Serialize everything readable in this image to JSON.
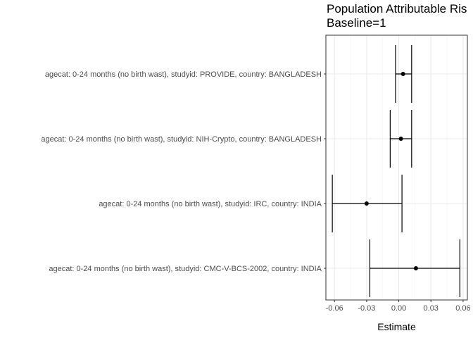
{
  "chart_data": {
    "type": "forest",
    "title": "Population Attributable Ris",
    "subtitle": "Baseline=1",
    "xlabel": "Estimate",
    "ylabel": "",
    "xlim": [
      -0.068,
      0.064
    ],
    "x_ticks": [
      -0.06,
      -0.03,
      0.0,
      0.03,
      0.06
    ],
    "x_tick_labels": [
      "-0.06",
      "-0.03",
      "0.00",
      "0.03",
      "0.06"
    ],
    "grid": true,
    "rows": [
      {
        "label": "agecat: 0-24 months (no birth wast), studyid: PROVIDE, country: BANGLADESH",
        "estimate": 0.004,
        "lower": -0.003,
        "upper": 0.012
      },
      {
        "label": "agecat: 0-24 months (no birth wast), studyid: NIH-Crypto, country: BANGLADESH",
        "estimate": 0.002,
        "lower": -0.008,
        "upper": 0.012
      },
      {
        "label": "agecat: 0-24 months (no birth wast), studyid: IRC, country: INDIA",
        "estimate": -0.03,
        "lower": -0.062,
        "upper": 0.003
      },
      {
        "label": "agecat: 0-24 months (no birth wast), studyid: CMC-V-BCS-2002, country: INDIA",
        "estimate": 0.016,
        "lower": -0.027,
        "upper": 0.057
      }
    ]
  }
}
